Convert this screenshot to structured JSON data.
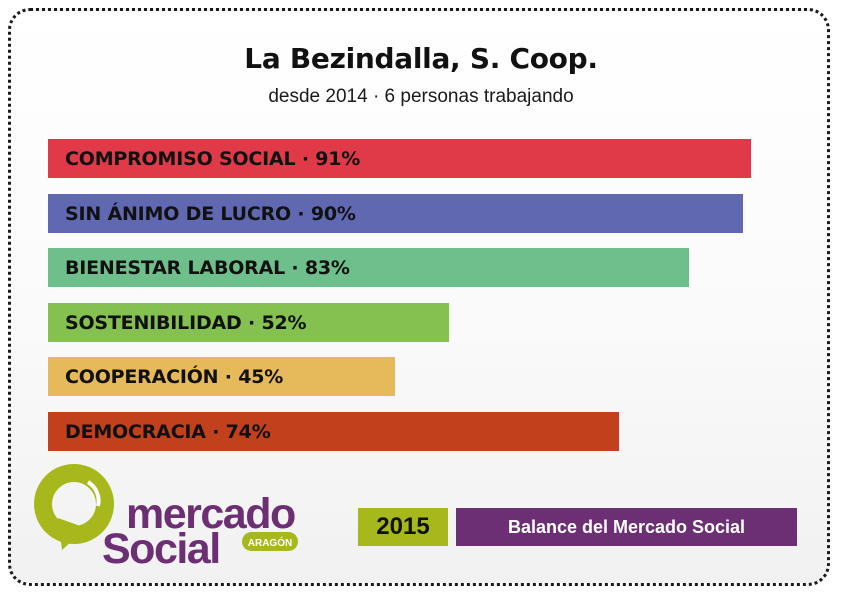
{
  "header": {
    "title": "La Bezindalla, S. Coop.",
    "subtitle": "desde 2014 · 6 personas trabajando"
  },
  "chart_data": {
    "type": "bar",
    "orientation": "horizontal",
    "categories": [
      "COMPROMISO SOCIAL",
      "SIN ÁNIMO DE LUCRO",
      "BIENESTAR LABORAL",
      "SOSTENIBILIDAD",
      "COOPERACIÓN",
      "DEMOCRACIA"
    ],
    "values": [
      91,
      90,
      83,
      52,
      45,
      74
    ],
    "labels": [
      "COMPROMISO SOCIAL · 91%",
      "SIN ÁNIMO DE LUCRO · 90%",
      "BIENESTAR LABORAL · 83%",
      "SOSTENIBILIDAD · 52%",
      "COOPERACIÓN · 45%",
      "DEMOCRACIA · 74%"
    ],
    "colors": [
      "#e03a48",
      "#6068b2",
      "#6ebf8b",
      "#84c150",
      "#e6b95a",
      "#c2401c"
    ],
    "xlim": [
      0,
      100
    ],
    "unit": "%",
    "grid": false,
    "legend": "none"
  },
  "logo": {
    "line1": "mercado",
    "line2": "Social",
    "badge": "ARAGÓN",
    "colors": {
      "green": "#a6b81c",
      "purple": "#6c2f74"
    }
  },
  "footer": {
    "year": "2015",
    "balance_label": "Balance del Mercado Social"
  }
}
